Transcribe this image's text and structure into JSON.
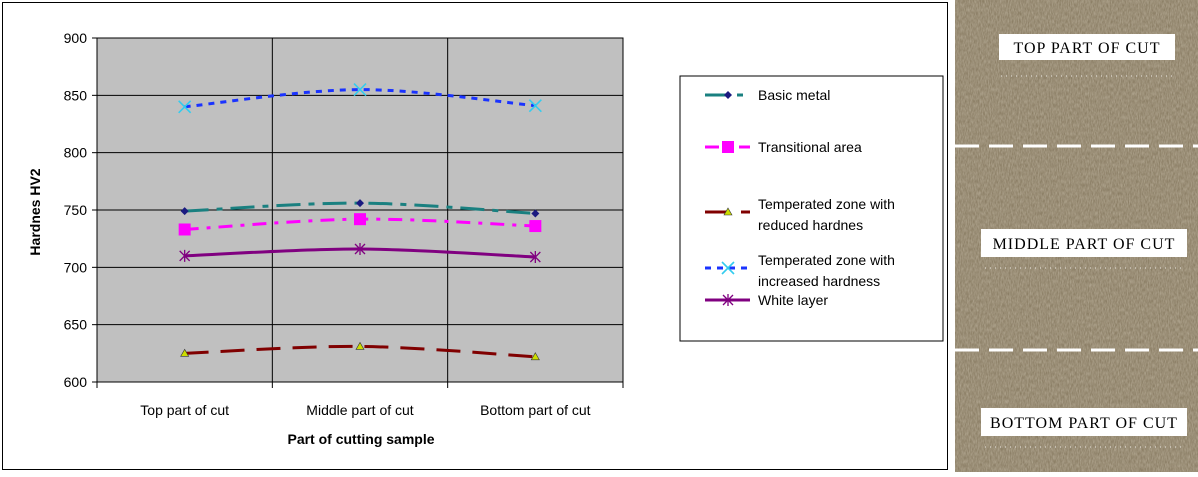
{
  "chart_data": {
    "type": "line",
    "title": "",
    "xlabel": "Part of cutting sample",
    "ylabel": "Hardnes HV2",
    "categories": [
      "Top part of cut",
      "Middle part of cut",
      "Bottom part of cut"
    ],
    "ylim": [
      600,
      900
    ],
    "yticks": [
      600,
      650,
      700,
      750,
      800,
      850,
      900
    ],
    "grid": true,
    "legend_position": "right",
    "series": [
      {
        "name": "Basic metal",
        "values": [
          749,
          756,
          747
        ],
        "color": "#1a8080",
        "marker": "diamond",
        "marker_color": "#1a1a80",
        "dash": "24,8,6,8"
      },
      {
        "name": "Transitional area",
        "values": [
          733,
          742,
          736
        ],
        "color": "#ff00ff",
        "marker": "square",
        "marker_color": "#ff00ff",
        "dash": "14,8,4,8"
      },
      {
        "name": "Temperated zone with reduced hardnes",
        "values": [
          625,
          631,
          622
        ],
        "color": "#800000",
        "marker": "triangle",
        "marker_color": "#ccdd00",
        "dash": "24,12"
      },
      {
        "name": "Temperated zone with increased hardness",
        "values": [
          840,
          855,
          841
        ],
        "color": "#1a33ff",
        "marker": "x",
        "marker_color": "#33ccee",
        "dash": "6,6"
      },
      {
        "name": "White layer",
        "values": [
          710,
          716,
          709
        ],
        "color": "#800080",
        "marker": "star",
        "marker_color": "#800080",
        "dash": ""
      }
    ],
    "legend_lines": [
      [
        "Basic metal"
      ],
      [
        "Transitional area"
      ],
      [
        "Temperated zone with",
        "reduced hardnes"
      ],
      [
        "Temperated zone with",
        "increased hardness"
      ],
      [
        "White layer"
      ]
    ]
  },
  "photo": {
    "labels": [
      "TOP PART OF CUT",
      "MIDDLE PART OF CUT",
      "BOTTOM PART OF CUT"
    ],
    "texture_color": "#8a7d64"
  }
}
